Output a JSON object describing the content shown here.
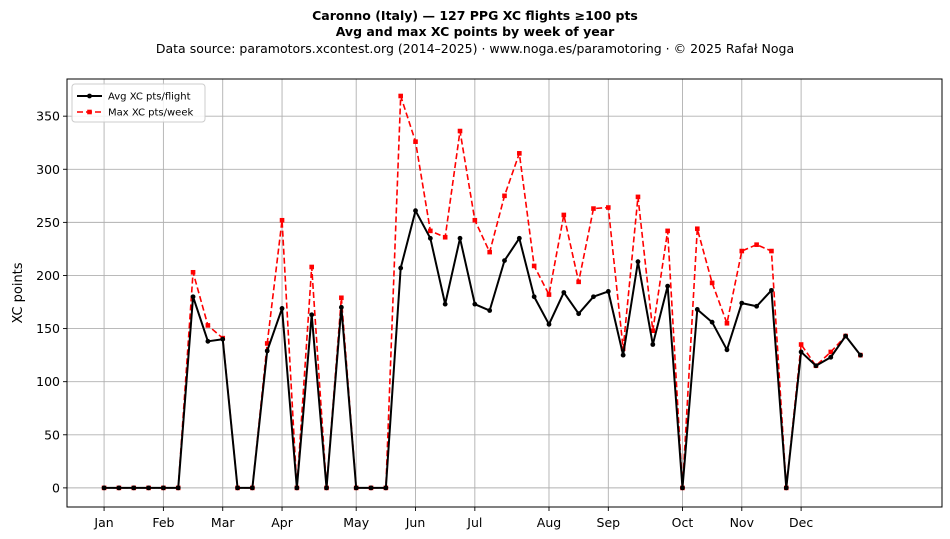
{
  "chart_data": {
    "type": "line",
    "title": "Caronno (Italy)  —  127 PPG XC flights ≥100 pts",
    "subtitle": "Avg and max XC points by week of year",
    "source_note": "Data source: paramotors.xcontest.org (2014–2025)  ·  www.noga.es/paramotoring  ·  © 2025 Rafał Noga",
    "ylabel": "XC points",
    "xlabel": "",
    "x_unit": "week of year",
    "x": [
      1,
      2,
      3,
      4,
      5,
      6,
      7,
      8,
      9,
      10,
      11,
      12,
      13,
      14,
      15,
      16,
      17,
      18,
      19,
      20,
      21,
      22,
      23,
      24,
      25,
      26,
      27,
      28,
      29,
      30,
      31,
      32,
      33,
      34,
      35,
      36,
      37,
      38,
      39,
      40,
      41,
      42,
      43,
      44,
      45,
      46,
      47,
      48,
      49,
      50,
      51,
      52
    ],
    "xlim": [
      -1.5,
      57.5
    ],
    "ylim": [
      -18,
      385
    ],
    "y_ticks": [
      0,
      50,
      100,
      150,
      200,
      250,
      300,
      350
    ],
    "x_ticks": [
      {
        "label": "Jan",
        "week": 1
      },
      {
        "label": "Feb",
        "week": 5
      },
      {
        "label": "Mar",
        "week": 9
      },
      {
        "label": "Apr",
        "week": 13
      },
      {
        "label": "May",
        "week": 18
      },
      {
        "label": "Jun",
        "week": 22
      },
      {
        "label": "Jul",
        "week": 26
      },
      {
        "label": "Aug",
        "week": 31
      },
      {
        "label": "Sep",
        "week": 35
      },
      {
        "label": "Oct",
        "week": 40
      },
      {
        "label": "Nov",
        "week": 44
      },
      {
        "label": "Dec",
        "week": 48
      }
    ],
    "grid": true,
    "legend_position": "top-left",
    "series": [
      {
        "name": "Avg XC pts/flight",
        "color": "#000000",
        "style": "solid",
        "marker": "circle",
        "values": [
          0,
          0,
          0,
          0,
          0,
          0,
          180,
          138,
          140,
          0,
          0,
          129,
          169,
          0,
          163,
          0,
          170,
          0,
          0,
          0,
          207,
          261,
          235,
          173,
          235,
          173,
          167,
          214,
          235,
          180,
          154,
          184,
          164,
          180,
          185,
          125,
          213,
          135,
          190,
          0,
          168,
          156,
          130,
          174,
          171,
          186,
          0,
          128,
          115,
          123,
          143,
          125
        ]
      },
      {
        "name": "Max XC pts/week",
        "color": "#ff0000",
        "style": "dashed",
        "marker": "square",
        "values": [
          0,
          0,
          0,
          0,
          0,
          0,
          203,
          153,
          141,
          0,
          0,
          136,
          252,
          0,
          208,
          0,
          179,
          0,
          0,
          0,
          369,
          326,
          242,
          236,
          336,
          252,
          222,
          275,
          315,
          209,
          182,
          257,
          194,
          263,
          264,
          131,
          274,
          148,
          242,
          0,
          244,
          193,
          155,
          223,
          229,
          223,
          0,
          135,
          115,
          128,
          143,
          125
        ]
      }
    ]
  }
}
